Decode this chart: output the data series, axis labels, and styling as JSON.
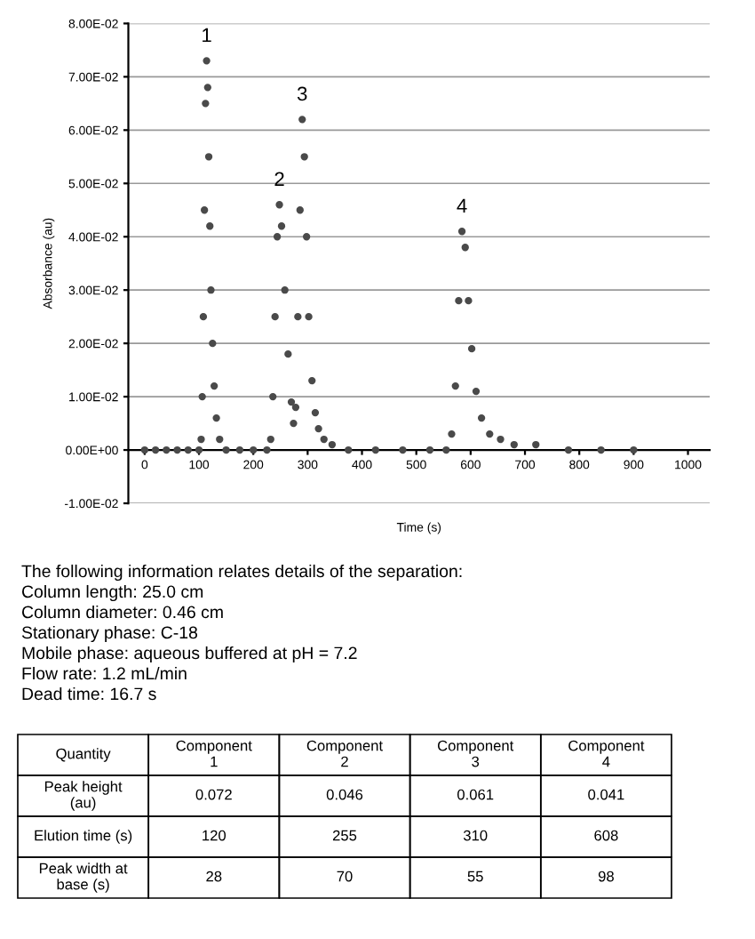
{
  "chart_data": {
    "type": "scatter",
    "xlabel": "Time (s)",
    "ylabel": "Absorbance (au)",
    "color": "#4a4a4a",
    "marker": "circle",
    "grid": "y",
    "x": [
      0,
      20,
      40,
      60,
      80,
      100,
      104,
      106,
      108,
      110,
      112,
      114,
      116,
      118,
      120,
      122,
      125,
      128,
      132,
      138,
      150,
      175,
      200,
      225,
      232,
      236,
      240,
      244,
      248,
      252,
      258,
      264,
      270,
      274,
      278,
      282,
      286,
      290,
      294,
      298,
      302,
      308,
      314,
      320,
      330,
      345,
      375,
      425,
      475,
      525,
      555,
      565,
      572,
      578,
      584,
      590,
      596,
      602,
      610,
      620,
      635,
      655,
      680,
      720,
      780,
      840,
      900
    ],
    "values": [
      0,
      0,
      0,
      0,
      0,
      0,
      0.002,
      0.01,
      0.025,
      0.045,
      0.065,
      0.073,
      0.068,
      0.055,
      0.042,
      0.03,
      0.02,
      0.012,
      0.006,
      0.002,
      0,
      0,
      0,
      0,
      0.002,
      0.01,
      0.025,
      0.04,
      0.046,
      0.042,
      0.03,
      0.018,
      0.009,
      0.005,
      0.008,
      0.025,
      0.045,
      0.062,
      0.055,
      0.04,
      0.025,
      0.013,
      0.007,
      0.004,
      0.002,
      0.001,
      0,
      0,
      0,
      0,
      0,
      0.003,
      0.012,
      0.028,
      0.041,
      0.038,
      0.028,
      0.019,
      0.011,
      0.006,
      0.003,
      0.002,
      0.001,
      0.001,
      0,
      0,
      0
    ],
    "xlim": [
      -30,
      1040
    ],
    "xticks": [
      0,
      100,
      200,
      300,
      400,
      500,
      600,
      700,
      800,
      900,
      1000
    ],
    "ylim": [
      -0.01,
      0.08
    ],
    "yticks": [
      {
        "value": -0.01,
        "label": "-1.00E-02"
      },
      {
        "value": 0,
        "label": "0.00E+00"
      },
      {
        "value": 0.01,
        "label": "1.00E-02"
      },
      {
        "value": 0.02,
        "label": "2.00E-02"
      },
      {
        "value": 0.03,
        "label": "3.00E-02"
      },
      {
        "value": 0.04,
        "label": "4.00E-02"
      },
      {
        "value": 0.05,
        "label": "5.00E-02"
      },
      {
        "value": 0.06,
        "label": "6.00E-02"
      },
      {
        "value": 0.07,
        "label": "7.00E-02"
      },
      {
        "value": 0.08,
        "label": "8.00E-02"
      }
    ],
    "annotations": [
      {
        "text": "1",
        "x": 114,
        "y": 0.073
      },
      {
        "text": "2",
        "x": 248,
        "y": 0.046
      },
      {
        "text": "3",
        "x": 290,
        "y": 0.062
      },
      {
        "text": "4",
        "x": 584,
        "y": 0.041
      },
      "The following information relates details of the separation:",
      "Column length: 25.0 cm",
      "Column diameter: 0.46 cm",
      "Stationary phase: C-18",
      "Mobile phase: aqueous buffered at pH = 7.2",
      "Flow rate: 1.2 mL/min",
      "Dead time: 16.7 s",
      "Quantity",
      "Component\n1",
      "Component\n2",
      "Component\n3",
      "Component\n4",
      "Peak height\n(au)",
      "0.072",
      "0.046",
      "0.061",
      "0.041",
      "Elution time (s)",
      "120",
      "255",
      "310",
      "608",
      "Peak width at\nbase (s)",
      "28",
      "70",
      "55",
      "98"
    ]
  }
}
